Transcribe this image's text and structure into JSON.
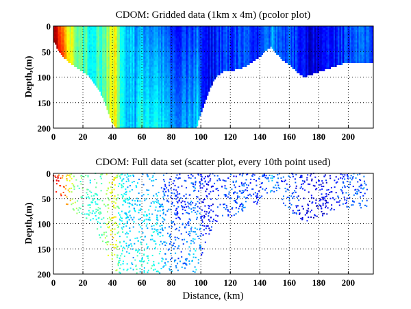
{
  "chart_data": [
    {
      "type": "heatmap",
      "title": "CDOM: Gridded data (1km x 4m) (pcolor plot)",
      "xlabel": "",
      "ylabel": "Depth,(m)",
      "xlim": [
        0,
        217
      ],
      "ylim": [
        200,
        0
      ],
      "y_reversed": true,
      "xticks": [
        0,
        20,
        40,
        60,
        80,
        100,
        120,
        140,
        160,
        180,
        200
      ],
      "yticks": [
        0,
        50,
        100,
        150,
        200
      ],
      "grid": true,
      "colormap": "jet",
      "cell_size": {
        "distance_km": 1,
        "depth_m": 4
      },
      "distance_km": [
        0,
        2,
        5,
        10,
        15,
        20,
        25,
        30,
        35,
        40,
        42,
        45,
        50,
        55,
        60,
        65,
        70,
        75,
        80,
        85,
        90,
        95,
        97,
        100,
        105,
        110,
        115,
        120,
        125,
        130,
        135,
        140,
        145,
        148,
        150,
        155,
        160,
        165,
        170,
        175,
        180,
        185,
        190,
        195,
        200,
        205,
        210,
        215,
        217
      ],
      "bottom_depth_m": [
        30,
        40,
        55,
        70,
        80,
        90,
        100,
        120,
        150,
        190,
        200,
        200,
        200,
        200,
        200,
        200,
        200,
        200,
        200,
        200,
        200,
        200,
        200,
        170,
        130,
        100,
        90,
        88,
        85,
        80,
        70,
        60,
        45,
        40,
        50,
        65,
        75,
        90,
        100,
        95,
        90,
        85,
        80,
        75,
        70,
        70,
        72,
        70,
        70
      ],
      "relative_cdom": [
        0.92,
        0.88,
        0.78,
        0.62,
        0.5,
        0.45,
        0.4,
        0.42,
        0.5,
        0.62,
        0.6,
        0.4,
        0.35,
        0.3,
        0.28,
        0.28,
        0.3,
        0.2,
        0.15,
        0.12,
        0.15,
        0.2,
        0.22,
        0.15,
        0.12,
        0.15,
        0.2,
        0.18,
        0.2,
        0.2,
        0.17,
        0.15,
        0.22,
        0.3,
        0.25,
        0.18,
        0.2,
        0.15,
        0.12,
        0.1,
        0.1,
        0.12,
        0.14,
        0.16,
        0.2,
        0.2,
        0.22,
        0.2,
        0.2
      ]
    },
    {
      "type": "scatter",
      "title": "CDOM: Full data set (scatter plot, every 10th point used)",
      "xlabel": "Distance, (km)",
      "ylabel": "Depth,(m)",
      "xlim": [
        0,
        217
      ],
      "ylim": [
        200,
        0
      ],
      "y_reversed": true,
      "xticks": [
        0,
        20,
        40,
        60,
        80,
        100,
        120,
        140,
        160,
        180,
        200
      ],
      "yticks": [
        0,
        50,
        100,
        150,
        200
      ],
      "grid": true,
      "colormap": "jet",
      "sampling": "every 10th point"
    }
  ]
}
